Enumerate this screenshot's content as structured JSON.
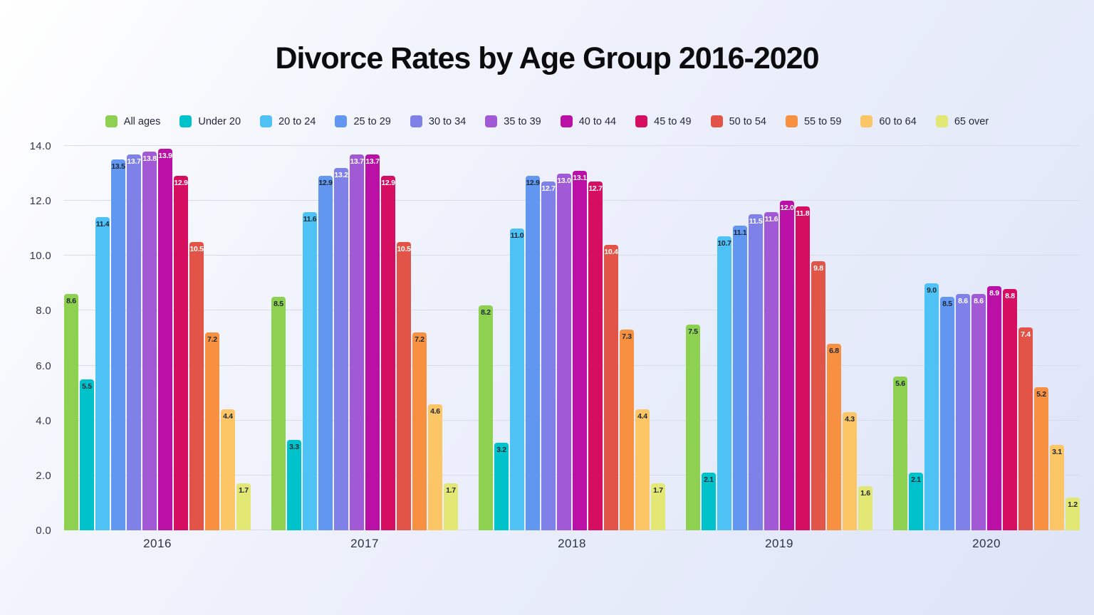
{
  "title": "Divorce Rates by Age Group 2016-2020",
  "colors": {
    "background_top_left": "#ffffff",
    "background_bottom_right": "#dde4f8",
    "gridline": "#d7dce9",
    "axis_text": "#30364a",
    "title_text": "#0c0c0e",
    "dark_value_label": "#1d2733",
    "light_value_label": "#ffffff"
  },
  "chart_data": {
    "type": "bar",
    "title": "Divorce Rates by Age Group 2016-2020",
    "categories": [
      "2016",
      "2017",
      "2018",
      "2019",
      "2020"
    ],
    "series": [
      {
        "name": "All ages",
        "color": "#8ed050",
        "label_color": "#1d2733",
        "values": [
          8.6,
          8.5,
          8.2,
          7.5,
          5.6
        ]
      },
      {
        "name": "Under 20",
        "color": "#00c2cb",
        "label_color": "#1d2733",
        "values": [
          5.5,
          3.3,
          3.2,
          2.1,
          2.1
        ]
      },
      {
        "name": "20 to 24",
        "color": "#4ec1f5",
        "label_color": "#1d2733",
        "values": [
          11.4,
          11.6,
          11.0,
          10.7,
          9.0
        ]
      },
      {
        "name": "25 to 29",
        "color": "#6297f1",
        "label_color": "#1d2733",
        "values": [
          13.5,
          12.9,
          12.9,
          11.1,
          8.5
        ]
      },
      {
        "name": "30 to 34",
        "color": "#7f80e8",
        "label_color": "#ffffff",
        "values": [
          13.7,
          13.2,
          12.7,
          11.5,
          8.6
        ]
      },
      {
        "name": "35 to 39",
        "color": "#a259d6",
        "label_color": "#ffffff",
        "values": [
          13.8,
          13.7,
          13.0,
          11.6,
          8.6
        ]
      },
      {
        "name": "40 to 44",
        "color": "#ba10a5",
        "label_color": "#ffffff",
        "values": [
          13.9,
          13.7,
          13.1,
          12.0,
          8.9
        ]
      },
      {
        "name": "45 to 49",
        "color": "#d60e61",
        "label_color": "#ffffff",
        "values": [
          12.9,
          12.9,
          12.7,
          11.8,
          8.8
        ]
      },
      {
        "name": "50 to 54",
        "color": "#e25447",
        "label_color": "#ffffff",
        "values": [
          10.5,
          10.5,
          10.4,
          9.8,
          7.4
        ]
      },
      {
        "name": "55 to 59",
        "color": "#f79141",
        "label_color": "#1d2733",
        "values": [
          7.2,
          7.2,
          7.3,
          6.8,
          5.2
        ]
      },
      {
        "name": "60 to 64",
        "color": "#fcc566",
        "label_color": "#1d2733",
        "values": [
          4.4,
          4.6,
          4.4,
          4.3,
          3.1
        ]
      },
      {
        "name": "65 over",
        "color": "#e3e773",
        "label_color": "#1d2733",
        "values": [
          1.7,
          1.7,
          1.7,
          1.6,
          1.2
        ]
      }
    ],
    "y_ticks": [
      "0.0",
      "2.0",
      "4.0",
      "6.0",
      "8.0",
      "10.0",
      "12.0",
      "14.0"
    ],
    "ylim": [
      0,
      14
    ],
    "grid": true,
    "legend_position": "top",
    "value_label_format": "one decimal, inside top of bar"
  }
}
